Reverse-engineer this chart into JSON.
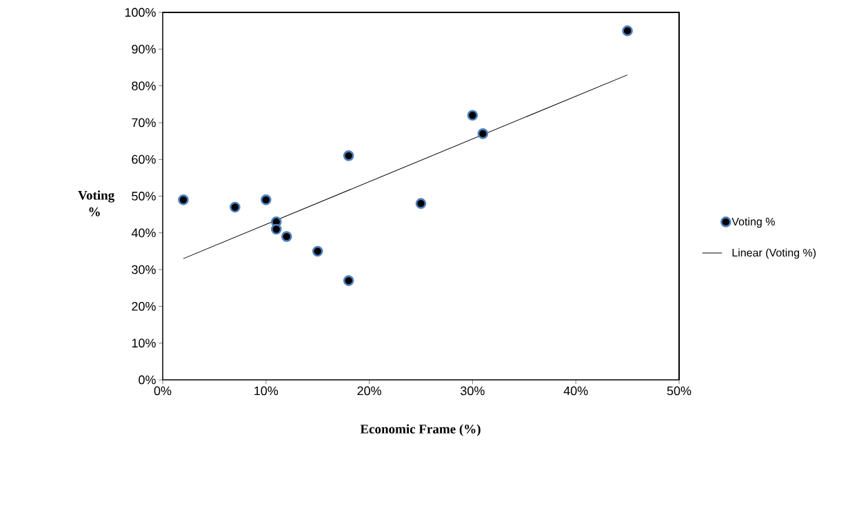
{
  "chart_data": {
    "type": "scatter",
    "xlabel": "Economic Frame (%)",
    "ylabel": "Voting %",
    "xlim": [
      0,
      50
    ],
    "ylim": [
      0,
      100
    ],
    "xticks": [
      {
        "value": 0,
        "label": "0%"
      },
      {
        "value": 10,
        "label": "10%"
      },
      {
        "value": 20,
        "label": "20%"
      },
      {
        "value": 30,
        "label": "30%"
      },
      {
        "value": 40,
        "label": "40%"
      },
      {
        "value": 50,
        "label": "50%"
      }
    ],
    "yticks": [
      {
        "value": 0,
        "label": "0%"
      },
      {
        "value": 10,
        "label": "10%"
      },
      {
        "value": 20,
        "label": "20%"
      },
      {
        "value": 30,
        "label": "30%"
      },
      {
        "value": 40,
        "label": "40%"
      },
      {
        "value": 50,
        "label": "50%"
      },
      {
        "value": 60,
        "label": "60%"
      },
      {
        "value": 70,
        "label": "70%"
      },
      {
        "value": 80,
        "label": "80%"
      },
      {
        "value": 90,
        "label": "90%"
      },
      {
        "value": 100,
        "label": "100%"
      }
    ],
    "legend": "right",
    "series": [
      {
        "name": "Voting %",
        "marker": "circle",
        "color": "#4f81bd",
        "x": [
          2,
          7,
          10,
          11,
          11,
          12,
          15,
          18,
          18,
          25,
          30,
          31,
          45
        ],
        "values": [
          49,
          47,
          49,
          43,
          41,
          39,
          35,
          27,
          61,
          48,
          72,
          67,
          95
        ]
      },
      {
        "name": "Linear (Voting %)",
        "type": "line",
        "marker": "none",
        "color": "#000000",
        "x": [
          2,
          45
        ],
        "values": [
          33,
          83
        ]
      }
    ]
  }
}
